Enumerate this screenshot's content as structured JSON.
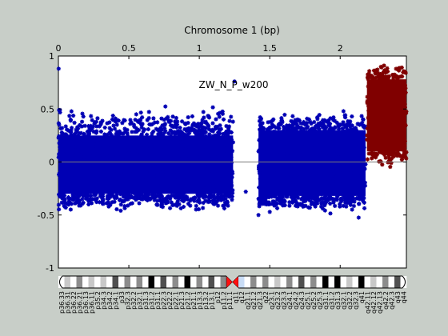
{
  "chart_data": {
    "type": "scatter",
    "title": "Chromosome 1 (bp)",
    "annotation": "ZW_N_P_w200",
    "xaxis": {
      "range": [
        0,
        2.47
      ],
      "position": "top",
      "ticks": [
        0,
        0.5,
        1,
        1.5,
        2
      ],
      "tick_labels": [
        "0",
        "0.5",
        "1",
        "1.5",
        "2"
      ]
    },
    "yaxis": {
      "range": [
        -1,
        1
      ],
      "ticks": [
        1,
        0.5,
        0,
        -0.5,
        -1
      ],
      "tick_labels": [
        "1",
        "0.5",
        "0",
        "-0.5",
        "-1"
      ]
    },
    "baseline": 0,
    "grid": false,
    "legend": "none",
    "series": [
      {
        "color": "#0000b4",
        "marker": "asterisk",
        "segments": [
          {
            "x": [
              0.0,
              1.24
            ],
            "y_core": [
              -0.3,
              0.25
            ],
            "y_extreme": [
              -0.5,
              0.58
            ]
          },
          {
            "x": [
              1.42,
              2.18
            ],
            "y_core": [
              -0.32,
              0.3
            ],
            "y_extreme": [
              -0.5,
              0.48
            ]
          }
        ],
        "outliers": [
          {
            "x": 0.002,
            "y": 0.88
          },
          {
            "x": 0.005,
            "y": 0.49
          },
          {
            "x": 1.25,
            "y": 0.76
          },
          {
            "x": 1.33,
            "y": -0.28
          },
          {
            "x": 1.42,
            "y": -0.5
          }
        ]
      },
      {
        "color": "#800000",
        "marker": "asterisk",
        "segments": [
          {
            "x": [
              2.19,
              2.47
            ],
            "y_core": [
              0.1,
              0.78
            ],
            "y_extreme": [
              -0.05,
              0.97
            ]
          }
        ],
        "outliers": []
      }
    ]
  },
  "ideogram": {
    "centromere_color": "#ff1010",
    "heterochromatin_color": "#c8dcf5",
    "bands": [
      {
        "label": "p36.33",
        "stain": "gneg"
      },
      {
        "label": "p36.31",
        "stain": "gpos25"
      },
      {
        "label": "p36.22",
        "stain": "gneg"
      },
      {
        "label": "p36.21",
        "stain": "gpos50"
      },
      {
        "label": "p36.13",
        "stain": "gneg"
      },
      {
        "label": "p36.11",
        "stain": "gpos25"
      },
      {
        "label": "p35.2",
        "stain": "gneg"
      },
      {
        "label": "p34.3",
        "stain": "gpos25"
      },
      {
        "label": "p34.2",
        "stain": "gneg"
      },
      {
        "label": "p34.1",
        "stain": "gpos75"
      },
      {
        "label": "p33",
        "stain": "gneg"
      },
      {
        "label": "p32.3",
        "stain": "gpos50"
      },
      {
        "label": "p32.2",
        "stain": "gneg"
      },
      {
        "label": "p32.1",
        "stain": "gpos50"
      },
      {
        "label": "p31.3",
        "stain": "gneg"
      },
      {
        "label": "p31.2",
        "stain": "gpos100"
      },
      {
        "label": "p31.1",
        "stain": "gneg"
      },
      {
        "label": "p22.3",
        "stain": "gpos75"
      },
      {
        "label": "p22.2",
        "stain": "gneg"
      },
      {
        "label": "p22.1",
        "stain": "gpos50"
      },
      {
        "label": "p21.3",
        "stain": "gneg"
      },
      {
        "label": "p21.2",
        "stain": "gpos100"
      },
      {
        "label": "p21.1",
        "stain": "gneg"
      },
      {
        "label": "p13.3",
        "stain": "gpos50"
      },
      {
        "label": "p13.2",
        "stain": "gneg"
      },
      {
        "label": "p13.1",
        "stain": "gpos75"
      },
      {
        "label": "p12",
        "stain": "gneg"
      },
      {
        "label": "p11.2",
        "stain": "gpos50"
      },
      {
        "label": "p11.1",
        "stain": "acen"
      },
      {
        "label": "q11",
        "stain": "acen"
      },
      {
        "label": "q12",
        "stain": "gvar"
      },
      {
        "label": "q21.1",
        "stain": "gneg"
      },
      {
        "label": "q21.2",
        "stain": "gpos50"
      },
      {
        "label": "q21.3",
        "stain": "gneg"
      },
      {
        "label": "q22",
        "stain": "gpos50"
      },
      {
        "label": "q23.1",
        "stain": "gneg"
      },
      {
        "label": "q23.2",
        "stain": "gpos25"
      },
      {
        "label": "q23.3",
        "stain": "gneg"
      },
      {
        "label": "q24.1",
        "stain": "gpos50"
      },
      {
        "label": "q24.2",
        "stain": "gneg"
      },
      {
        "label": "q24.3",
        "stain": "gpos75"
      },
      {
        "label": "q25.1",
        "stain": "gneg"
      },
      {
        "label": "q25.2",
        "stain": "gpos50"
      },
      {
        "label": "q25.3",
        "stain": "gneg"
      },
      {
        "label": "q31.1",
        "stain": "gpos100"
      },
      {
        "label": "q31.2",
        "stain": "gneg"
      },
      {
        "label": "q31.3",
        "stain": "gpos100"
      },
      {
        "label": "q32.1",
        "stain": "gneg"
      },
      {
        "label": "q32.2",
        "stain": "gpos25"
      },
      {
        "label": "q32.3",
        "stain": "gneg"
      },
      {
        "label": "q41",
        "stain": "gpos100"
      },
      {
        "label": "q42.11",
        "stain": "gneg"
      },
      {
        "label": "q42.12",
        "stain": "gpos25"
      },
      {
        "label": "q42.13",
        "stain": "gneg"
      },
      {
        "label": "q42.2",
        "stain": "gpos50"
      },
      {
        "label": "q42.3",
        "stain": "gneg"
      },
      {
        "label": "q43",
        "stain": "gpos75"
      },
      {
        "label": "q44",
        "stain": "gneg"
      }
    ]
  }
}
